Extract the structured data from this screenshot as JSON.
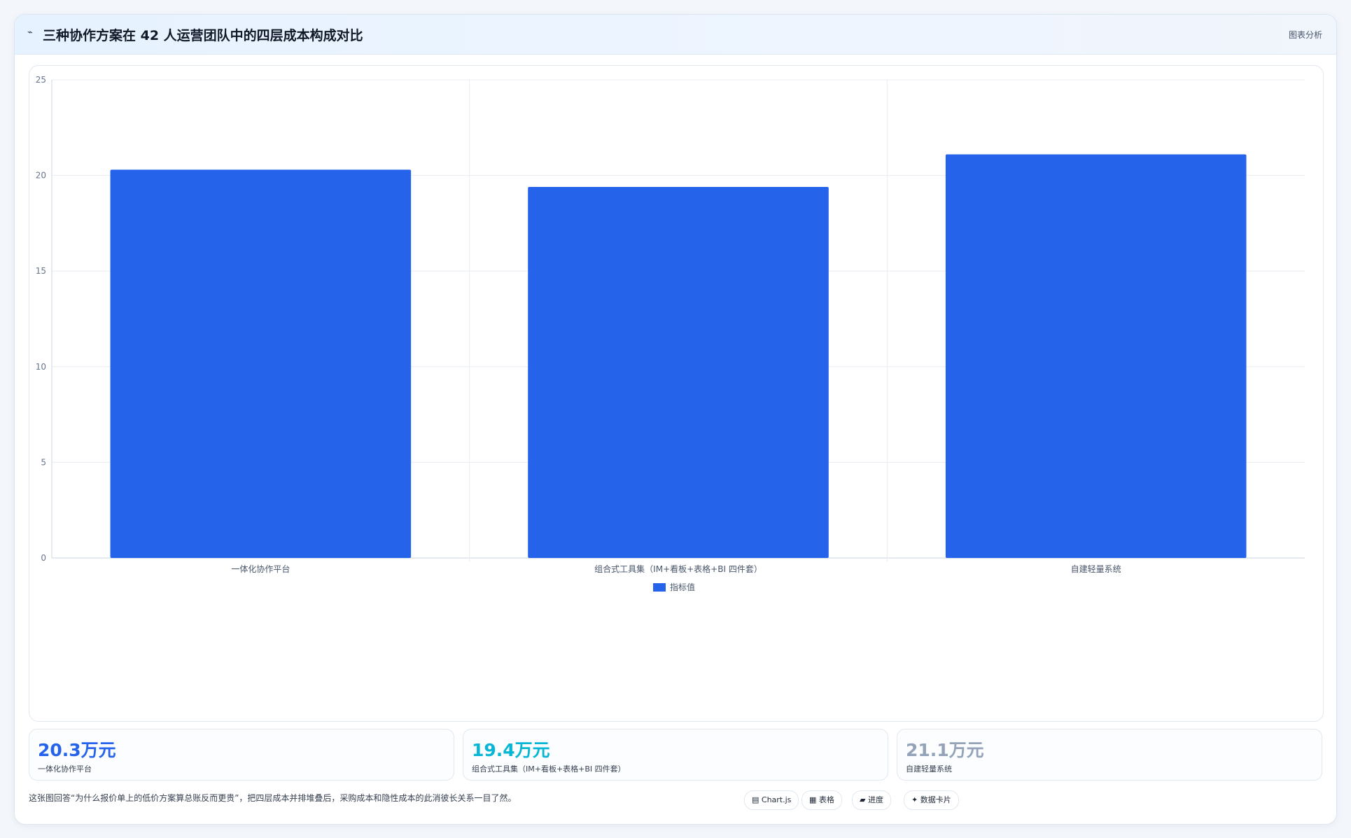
{
  "header": {
    "icon": "line-chart-icon",
    "title": "三种协作方案在 42 人运营团队中的四层成本构成对比",
    "analysis_label": "图表分析"
  },
  "chart_data": {
    "type": "bar",
    "categories": [
      "一体化协作平台",
      "组合式工具集（IM+看板+表格+BI 四件套）",
      "自建轻量系统"
    ],
    "series": [
      {
        "name": "指标值",
        "values": [
          20.3,
          19.4,
          21.1
        ],
        "color": "#2563eb"
      }
    ],
    "title": "三种协作方案在 42 人运营团队中的四层成本构成对比",
    "xlabel": "",
    "ylabel": "",
    "ylim": [
      0,
      25
    ],
    "yticks": [
      0,
      5,
      10,
      15,
      20,
      25
    ],
    "grid": true,
    "legend": "bottom"
  },
  "stats": [
    {
      "value": "20.3万元",
      "label": "一体化协作平台",
      "color": "#2563eb"
    },
    {
      "value": "19.4万元",
      "label": "组合式工具集（IM+看板+表格+BI 四件套）",
      "color": "#06b6d4"
    },
    {
      "value": "21.1万元",
      "label": "自建轻量系统",
      "color": "#94a3b8"
    }
  ],
  "footer": {
    "text": "这张图回答“为什么报价单上的低价方案算总账反而更贵”，把四层成本并排堆叠后，采购成本和隐性成本的此消彼长关系一目了然。"
  },
  "tags": [
    {
      "label": "▤ Chart.js",
      "icon": "chart-icon"
    },
    {
      "label": "▦ 表格",
      "icon": "table-icon"
    },
    {
      "label": "▰ 进度",
      "icon": "progress-icon"
    },
    {
      "label": "✦ 数据卡片",
      "icon": "card-icon"
    }
  ]
}
